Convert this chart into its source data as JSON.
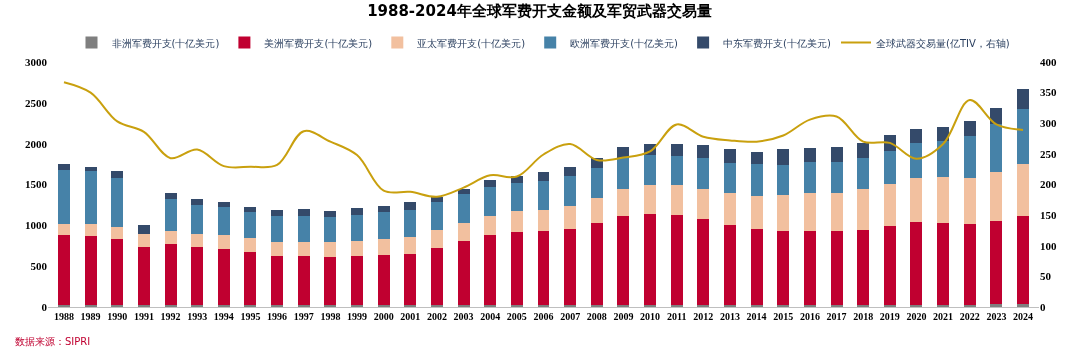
{
  "chart_data": {
    "type": "bar",
    "title": "1988-2024年全球军费开支金额及军贸武器交易量",
    "categories": [
      "1988",
      "1989",
      "1990",
      "1991",
      "1992",
      "1993",
      "1994",
      "1995",
      "1996",
      "1997",
      "1998",
      "1999",
      "2000",
      "2001",
      "2002",
      "2003",
      "2004",
      "2005",
      "2006",
      "2007",
      "2008",
      "2009",
      "2010",
      "2011",
      "2012",
      "2013",
      "2014",
      "2015",
      "2016",
      "2017",
      "2018",
      "2019",
      "2020",
      "2021",
      "2022",
      "2023",
      "2024"
    ],
    "series": [
      {
        "name": "非洲军费开支(十亿美元)",
        "color": "#7f7f7f",
        "values": [
          20,
          20,
          20,
          20,
          20,
          20,
          20,
          20,
          20,
          20,
          20,
          20,
          20,
          20,
          20,
          20,
          20,
          20,
          30,
          30,
          30,
          30,
          30,
          30,
          30,
          30,
          30,
          30,
          30,
          30,
          30,
          30,
          30,
          30,
          30,
          40,
          40
        ]
      },
      {
        "name": "美洲军费开支(十亿美元)",
        "color": "#c00030",
        "values": [
          860,
          850,
          810,
          710,
          750,
          720,
          690,
          650,
          610,
          600,
          590,
          600,
          620,
          630,
          700,
          790,
          860,
          900,
          900,
          930,
          1000,
          1080,
          1110,
          1100,
          1050,
          980,
          920,
          900,
          900,
          900,
          910,
          960,
          1010,
          1000,
          990,
          1010,
          1070
        ]
      },
      {
        "name": "亚太军费开支(十亿美元)",
        "color": "#f2c09f",
        "values": [
          140,
          150,
          150,
          160,
          160,
          160,
          170,
          170,
          170,
          180,
          180,
          190,
          190,
          210,
          220,
          220,
          240,
          250,
          260,
          280,
          300,
          340,
          350,
          360,
          370,
          390,
          410,
          440,
          460,
          470,
          500,
          520,
          540,
          560,
          560,
          600,
          640
        ]
      },
      {
        "name": "欧洲军费开支(十亿美元)",
        "color": "#4682a8",
        "values": [
          660,
          640,
          600,
          0,
          390,
          350,
          350,
          320,
          320,
          320,
          310,
          320,
          330,
          330,
          340,
          350,
          350,
          350,
          350,
          360,
          370,
          370,
          370,
          360,
          370,
          360,
          390,
          370,
          380,
          380,
          380,
          400,
          430,
          440,
          510,
          590,
          680
        ]
      },
      {
        "name": "中东军费开支(十亿美元)",
        "color": "#344a6a",
        "values": [
          70,
          60,
          80,
          110,
          80,
          70,
          60,
          70,
          70,
          80,
          80,
          80,
          80,
          90,
          70,
          70,
          80,
          90,
          110,
          120,
          120,
          140,
          140,
          140,
          160,
          170,
          150,
          200,
          180,
          180,
          190,
          200,
          170,
          180,
          190,
          200,
          240
        ]
      },
      {
        "name": "全球武器交易量(亿TIV，右轴)",
        "type": "line",
        "axis": "y2",
        "color": "#c9a00e",
        "values": [
          367,
          350,
          303,
          286,
          243,
          257,
          230,
          229,
          232,
          287,
          270,
          248,
          190,
          188,
          180,
          195,
          215,
          213,
          249,
          266,
          240,
          244,
          254,
          298,
          278,
          272,
          270,
          280,
          306,
          311,
          270,
          268,
          242,
          266,
          338,
          298,
          289
        ]
      }
    ],
    "stacked": true,
    "ylim": [
      0,
      3000
    ],
    "yticks": [
      0,
      500,
      1000,
      1500,
      2000,
      2500,
      3000
    ],
    "y2lim": [
      0,
      400
    ],
    "y2ticks": [
      0,
      50,
      100,
      150,
      200,
      250,
      300,
      350,
      400
    ],
    "grid": false,
    "legend": "top",
    "annotations": [
      "数据来源：SIPRI"
    ]
  }
}
